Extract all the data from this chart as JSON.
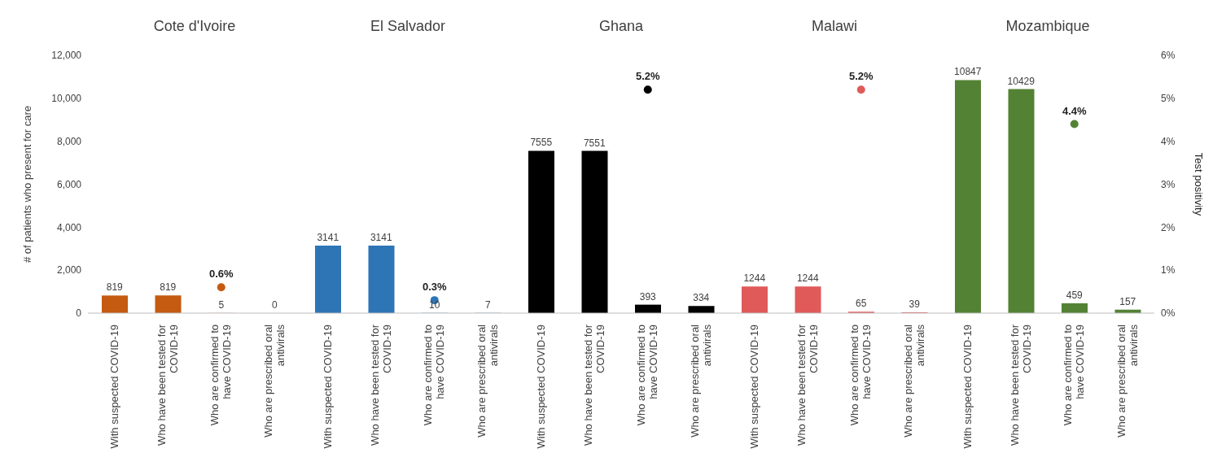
{
  "chart_data": {
    "type": "bar",
    "ylabel": "# of patients who present for care",
    "y2label": "Test positivity",
    "annotations": [
      "Cote d'Ivoire",
      "El Salvador",
      "Ghana",
      "Malawi",
      "Mozambique"
    ],
    "categories": [
      "With suspected COVID-19",
      "Who have been tested for COVID-19",
      "Who are confirmed to have COVID-19",
      "Who are prescribed oral antivirals",
      "With suspected COVID-19",
      "Who have been tested for COVID-19",
      "Who are confirmed to have COVID-19",
      "Who are prescribed oral antivirals",
      "With suspected COVID-19",
      "Who have been tested for COVID-19",
      "Who are confirmed to have COVID-19",
      "Who are prescribed oral antivirals",
      "With suspected COVID-19",
      "Who have been tested for COVID-19",
      "Who are confirmed to have COVID-19",
      "Who are prescribed oral antivirals",
      "With suspected COVID-19",
      "Who have been tested for COVID-19",
      "Who are confirmed to have COVID-19",
      "Who are prescribed oral antivirals"
    ],
    "series": [
      {
        "values": [
          819,
          819,
          5,
          0,
          3141,
          3141,
          10,
          7,
          7555,
          7551,
          393,
          334,
          1244,
          1244,
          65,
          39,
          10847,
          10429,
          459,
          157
        ],
        "colors": [
          "#c55a11",
          "#c55a11",
          "#c55a11",
          "#c55a11",
          "#2e75b6",
          "#2e75b6",
          "#2e75b6",
          "#2e75b6",
          "#000000",
          "#000000",
          "#000000",
          "#000000",
          "#e05a5a",
          "#e05a5a",
          "#e05a5a",
          "#e05a5a",
          "#548235",
          "#548235",
          "#548235",
          "#548235"
        ]
      },
      {
        "type": "scatter",
        "axis": "y2",
        "values": [
          null,
          null,
          0.6,
          null,
          null,
          null,
          0.3,
          null,
          null,
          null,
          5.2,
          null,
          null,
          null,
          5.2,
          null,
          null,
          null,
          4.4,
          null
        ],
        "colors": [
          null,
          null,
          "#c55a11",
          null,
          null,
          null,
          "#2e75b6",
          null,
          null,
          null,
          "#000000",
          null,
          null,
          null,
          "#e05a5a",
          null,
          null,
          null,
          "#548235",
          null
        ],
        "value_labels": [
          null,
          null,
          "0.6%",
          null,
          null,
          null,
          "0.3%",
          null,
          null,
          null,
          "5.2%",
          null,
          null,
          null,
          "5.2%",
          null,
          null,
          null,
          "4.4%",
          null
        ]
      }
    ],
    "data_labels": true,
    "marker": "circle",
    "ylim": [
      0,
      12000
    ],
    "yticks": [
      0,
      {
        "value": 2000,
        "label": "2,000"
      },
      {
        "value": 4000,
        "label": "4,000"
      },
      {
        "value": 6000,
        "label": "6,000"
      },
      {
        "value": 8000,
        "label": "8,000"
      },
      {
        "value": 10000,
        "label": "10,000"
      },
      {
        "value": 12000,
        "label": "12,000"
      }
    ],
    "y2lim": [
      0,
      6
    ],
    "y2ticks": [
      {
        "value": 0,
        "label": "0%"
      },
      {
        "value": 1,
        "label": "1%"
      },
      {
        "value": 2,
        "label": "2%"
      },
      {
        "value": 3,
        "label": "3%"
      },
      {
        "value": 4,
        "label": "4%"
      },
      {
        "value": 5,
        "label": "5%"
      },
      {
        "value": 6,
        "label": "6%"
      }
    ]
  }
}
